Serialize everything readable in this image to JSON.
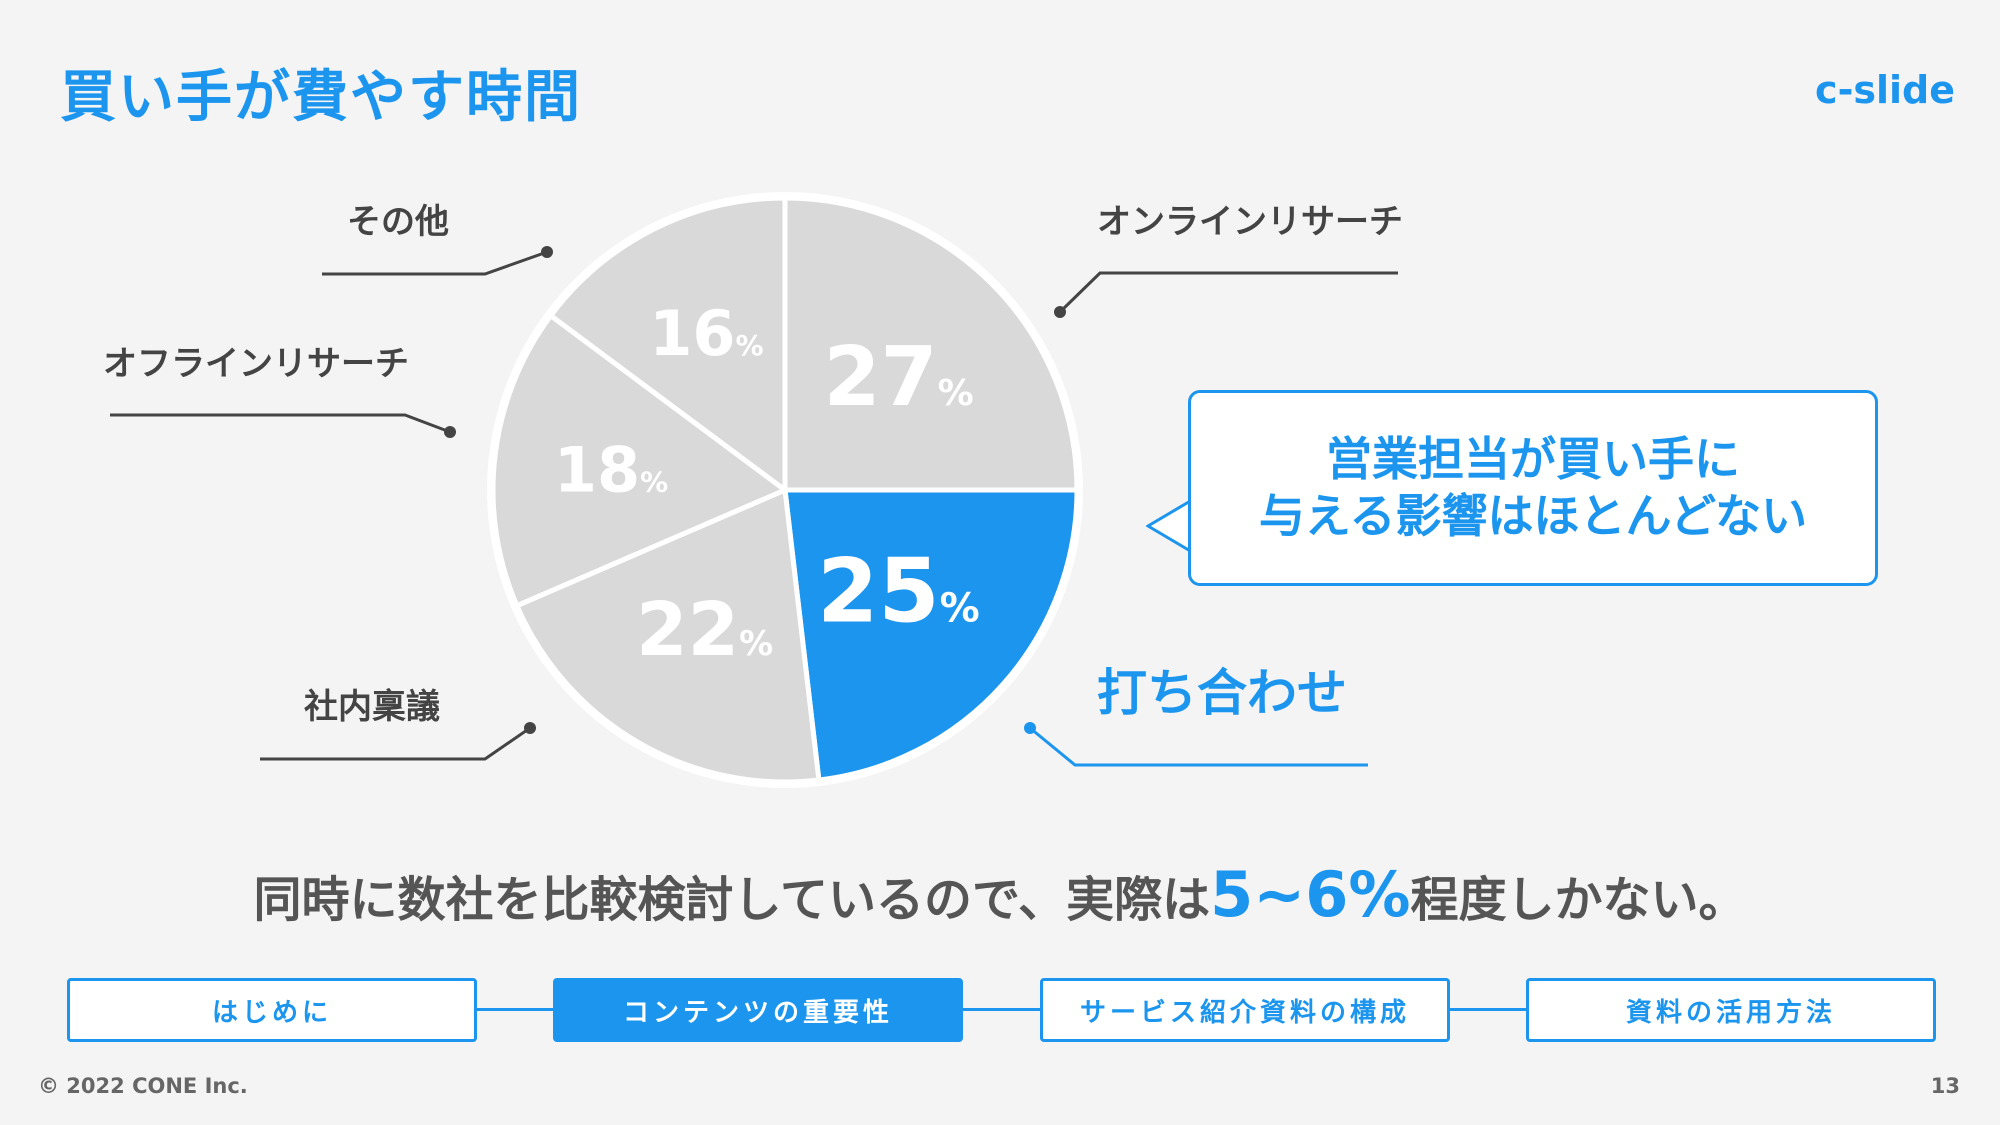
{
  "title": "買い手が費やす時間",
  "brand": "c-slide",
  "chart_data": {
    "type": "pie",
    "title": "",
    "slices": [
      {
        "label": "オンラインリサーチ",
        "value": 27,
        "value_text": "27",
        "highlight": false
      },
      {
        "label": "打ち合わせ",
        "value": 25,
        "value_text": "25",
        "highlight": true
      },
      {
        "label": "社内稟議",
        "value": 22,
        "value_text": "22",
        "highlight": false
      },
      {
        "label": "オフラインリサーチ",
        "value": 18,
        "value_text": "18",
        "highlight": false
      },
      {
        "label": "その他",
        "value": 16,
        "value_text": "16",
        "highlight": false
      }
    ],
    "unit": "%",
    "colors": {
      "default": "#d9d9d9",
      "highlight": "#1b95ee",
      "label": "#444444"
    }
  },
  "callout": {
    "line1": "営業担当が買い手に",
    "line2": "与える影響はほとんどない"
  },
  "summary": {
    "before": "同時に数社を比較検討しているので、実際は",
    "highlight": "5~6%",
    "after": "程度しかない。"
  },
  "nav": {
    "steps": [
      {
        "label": "はじめに",
        "active": false
      },
      {
        "label": "コンテンツの重要性",
        "active": true
      },
      {
        "label": "サービス紹介資料の構成",
        "active": false
      },
      {
        "label": "資料の活用方法",
        "active": false
      }
    ]
  },
  "footer": {
    "copyright": "© 2022 CONE Inc.",
    "page": "13"
  }
}
